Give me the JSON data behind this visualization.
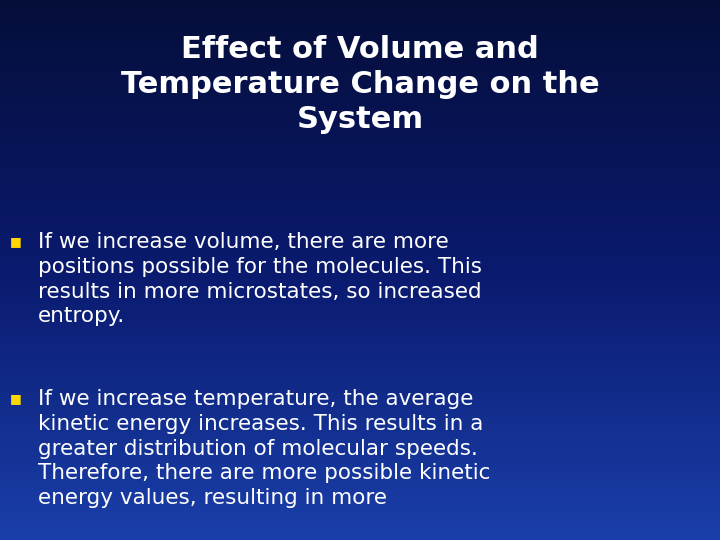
{
  "title_line1": "Effect of Volume and",
  "title_line2": "Temperature Change on the",
  "title_line3": "System",
  "title_color": "#FFFFFF",
  "title_fontsize": 22,
  "bullet_color": "#FFD700",
  "body_color": "#FFFFFF",
  "body_fontsize": 15.5,
  "bg_top": "#050e3a",
  "bg_mid": "#0a1a6e",
  "bg_bottom": "#1a3faa",
  "bullet1_lines": [
    "If we increase volume, there are more",
    "positions possible for the molecules. This",
    "results in more microstates, so increased",
    "entropy."
  ],
  "bullet2_lines": [
    "If we increase temperature, the average",
    "kinetic energy increases. This results in a",
    "greater distribution of molecular speeds.",
    "Therefore, there are more possible kinetic",
    "energy values, resulting in more"
  ]
}
